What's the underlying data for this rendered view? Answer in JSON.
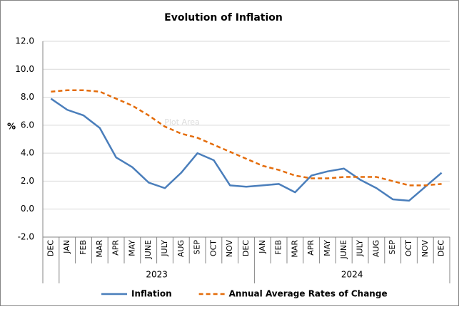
{
  "chart_data": {
    "type": "line",
    "title": "Evolution of Inflation",
    "y_label": "%",
    "annotation": "Plot Area",
    "categories": [
      "DEC",
      "JAN",
      "FEB",
      "MAR",
      "APR",
      "MAY",
      "JUNE",
      "JULY",
      "AUG",
      "SEP",
      "OCT",
      "NOV",
      "DEC",
      "JAN",
      "FEB",
      "MAR",
      "APR",
      "MAY",
      "JUNE",
      "JULY",
      "AUG",
      "SEP",
      "OCT",
      "NOV",
      "DEC"
    ],
    "category_years": [
      null,
      "2023",
      "2023",
      "2023",
      "2023",
      "2023",
      "2023",
      "2023",
      "2023",
      "2023",
      "2023",
      "2023",
      "2023",
      "2024",
      "2024",
      "2024",
      "2024",
      "2024",
      "2024",
      "2024",
      "2024",
      "2024",
      "2024",
      "2024",
      "2024"
    ],
    "series": [
      {
        "name": "Inflation",
        "color": "#4a7ebb",
        "dash": false,
        "values": [
          7.9,
          7.1,
          6.7,
          5.8,
          3.7,
          3.0,
          1.9,
          1.5,
          2.6,
          4.0,
          3.5,
          1.7,
          1.6,
          1.7,
          1.8,
          1.2,
          2.4,
          2.7,
          2.9,
          2.1,
          1.5,
          0.7,
          0.6,
          1.6,
          2.6
        ]
      },
      {
        "name": "Annual Average Rates of Change",
        "color": "#e46c0a",
        "dash": true,
        "values": [
          8.4,
          8.5,
          8.5,
          8.4,
          7.9,
          7.4,
          6.7,
          5.9,
          5.4,
          5.1,
          4.6,
          4.1,
          3.6,
          3.1,
          2.8,
          2.4,
          2.2,
          2.2,
          2.3,
          2.3,
          2.3,
          2.0,
          1.7,
          1.7,
          1.8
        ]
      }
    ],
    "ylim": [
      -2,
      12
    ],
    "yticks": [
      {
        "value": -2,
        "label": "-2.0"
      },
      {
        "value": 0,
        "label": "0.0"
      },
      {
        "value": 2,
        "label": "2.0"
      },
      {
        "value": 4,
        "label": "4.0"
      },
      {
        "value": 6,
        "label": "6.0"
      },
      {
        "value": 8,
        "label": "8.0"
      },
      {
        "value": 10,
        "label": "10.0"
      },
      {
        "value": 12,
        "label": "12.0"
      }
    ],
    "grid": true
  }
}
